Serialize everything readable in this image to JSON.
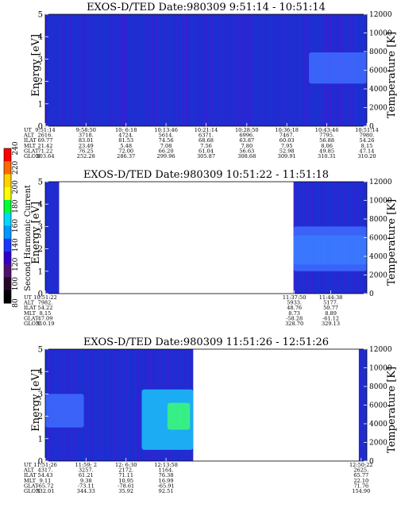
{
  "colors": {
    "panel_background": "#1c2fd0",
    "band": "#3f6cff",
    "bright": "#19d8ff",
    "hot": "#3dff6a",
    "streak": "#3b1fd6"
  },
  "colorbar": {
    "label": "Second Harmonic Current",
    "ticks": [
      "240",
      "220",
      "200",
      "180",
      "160",
      "140",
      "120",
      "100",
      "80"
    ],
    "colors": [
      "#ff0000",
      "#ff6a00",
      "#ffd200",
      "#fcff00",
      "#00ff38",
      "#00d8ff",
      "#0098ff",
      "#1a37ff",
      "#3000c8",
      "#501070",
      "#280828",
      "#000000"
    ]
  },
  "chart_data": [
    {
      "type": "heatmap",
      "title": "EXOS-D/TED   Date:980309  9:51:14 - 10:51:14",
      "ylabel": "Energy [eV]",
      "ylabel_right": "Temperature [K]",
      "ylim": [
        0,
        5
      ],
      "ylim_right": [
        0,
        12000
      ],
      "yticks": [
        "0",
        "1",
        "2",
        "3",
        "4",
        "5"
      ],
      "yticks_right": [
        "0",
        "2000",
        "4000",
        "6000",
        "8000",
        "10000",
        "12000"
      ],
      "x": [
        "9:51:14",
        "9:58:50",
        "10: 6:18",
        "10:13:46",
        "10:21:14",
        "10:28:50",
        "10:36:18",
        "10:43:46",
        "10:51:14"
      ],
      "rows": [
        {
          "label": "UT",
          "values": [
            "9:51:14",
            "9:58:50",
            "10: 6:18",
            "10:13:46",
            "10:21:14",
            "10:28:50",
            "10:36:18",
            "10:43:46",
            "10:51:14"
          ]
        },
        {
          "label": "ALT",
          "values": [
            "2616.",
            "3718.",
            "4724.",
            "5614.",
            "6371.",
            "6996.",
            "7467.",
            "7795.",
            "7980."
          ]
        },
        {
          "label": "ILAT",
          "values": [
            "69.77",
            "83.01",
            "81.53",
            "74.56",
            "68.68",
            "63.87",
            "60.03",
            "56.88",
            "54.26"
          ]
        },
        {
          "label": "MLT",
          "values": [
            "21.42",
            "23.49",
            "5.48",
            "7.08",
            "7.56",
            "7.80",
            "7.95",
            "8.06",
            "8.15"
          ]
        },
        {
          "label": "GLAT",
          "values": [
            "71.22",
            "76.25",
            "72.00",
            "66.20",
            "61.04",
            "56.63",
            "52.98",
            "49.85",
            "47.14"
          ]
        },
        {
          "label": "GLON",
          "values": [
            "203.64",
            "252.28",
            "286.37",
            "299.96",
            "305.87",
            "308.68",
            "309.91",
            "310.31",
            "310.20"
          ]
        }
      ],
      "data_coverage": [
        [
          0,
          1
        ]
      ],
      "features": [
        {
          "kind": "band",
          "x_from": 0.82,
          "x_to": 1.0,
          "e_from": 1.9,
          "e_to": 3.3
        }
      ]
    },
    {
      "type": "heatmap",
      "title": "EXOS-D/TED   Date:980309  10:51:22 - 11:51:18",
      "ylabel": "Energy [eV]",
      "ylabel_right": "Temperature [K]",
      "ylim": [
        0,
        5
      ],
      "ylim_right": [
        0,
        12000
      ],
      "yticks": [
        "0",
        "1",
        "2",
        "3",
        "4",
        "5"
      ],
      "yticks_right": [
        "0",
        "2000",
        "4000",
        "6000",
        "8000",
        "10000",
        "12000"
      ],
      "x": [
        "10:51:22",
        "11:37:50",
        "11:44:38"
      ],
      "rows": [
        {
          "label": "UT",
          "values": [
            "10:51:22",
            "11:37:50",
            "11:44:38"
          ]
        },
        {
          "label": "ALT",
          "values": [
            "7982.",
            "5933.",
            "5177."
          ]
        },
        {
          "label": "ILAT",
          "values": [
            "54.22",
            "48.76",
            "50.77"
          ]
        },
        {
          "label": "MLT",
          "values": [
            "8.15",
            "8.73",
            "8.89"
          ]
        },
        {
          "label": "GLAT",
          "values": [
            "47.09",
            "-58.28",
            "-61.12"
          ]
        },
        {
          "label": "GLON",
          "values": [
            "310.19",
            "328.70",
            "329.13"
          ]
        }
      ],
      "data_coverage": [
        [
          0,
          0.043
        ],
        [
          0.772,
          1
        ]
      ],
      "features": [
        {
          "kind": "bright_band",
          "x_from": 0.772,
          "x_to": 1.0,
          "e_from": 1.3,
          "e_to": 2.6
        },
        {
          "kind": "band",
          "x_from": 0.772,
          "x_to": 1.0,
          "e_from": 1.0,
          "e_to": 3.0
        }
      ]
    },
    {
      "type": "heatmap",
      "title": "EXOS-D/TED   Date:980309  11:51:26 - 12:51:26",
      "ylabel": "Energy [eV]",
      "ylabel_right": "Temperature [K]",
      "ylim": [
        0,
        5
      ],
      "ylim_right": [
        0,
        12000
      ],
      "yticks": [
        "0",
        "1",
        "2",
        "3",
        "4",
        "5"
      ],
      "yticks_right": [
        "0",
        "2000",
        "4000",
        "6000",
        "8000",
        "10000",
        "12000"
      ],
      "x": [
        "11:51:26",
        "11:59: 2",
        "12: 6:30",
        "12:13:58",
        "12:50:22"
      ],
      "rows": [
        {
          "label": "UT",
          "values": [
            "11:51:26",
            "11:59: 2",
            "12: 6:30",
            "12:13:58",
            "12:50:22"
          ]
        },
        {
          "label": "ALT",
          "values": [
            "4317.",
            "3257.",
            "2172.",
            "1164.",
            "2625."
          ]
        },
        {
          "label": "ILAT",
          "values": [
            "54.43",
            "61.21",
            "71.11",
            "76.38",
            "65.77"
          ]
        },
        {
          "label": "MLT",
          "values": [
            "9.11",
            "9.38",
            "10.95",
            "16.99",
            "22.10"
          ]
        },
        {
          "label": "GLAT",
          "values": [
            "-65.72",
            "-73.11",
            "-78.61",
            "-65.91",
            "71.76"
          ]
        },
        {
          "label": "GLON",
          "values": [
            "332.01",
            "344.33",
            "35.92",
            "92.51",
            "154.90"
          ]
        }
      ],
      "data_coverage": [
        [
          0,
          0.46
        ],
        [
          0.975,
          1
        ]
      ],
      "features": [
        {
          "kind": "band",
          "x_from": 0.0,
          "x_to": 0.12,
          "e_from": 1.5,
          "e_to": 3.0
        },
        {
          "kind": "bright_band",
          "x_from": 0.3,
          "x_to": 0.46,
          "e_from": 0.5,
          "e_to": 3.2
        },
        {
          "kind": "hot_spot",
          "x_from": 0.38,
          "x_to": 0.45,
          "e_from": 1.4,
          "e_to": 2.6
        }
      ]
    }
  ]
}
